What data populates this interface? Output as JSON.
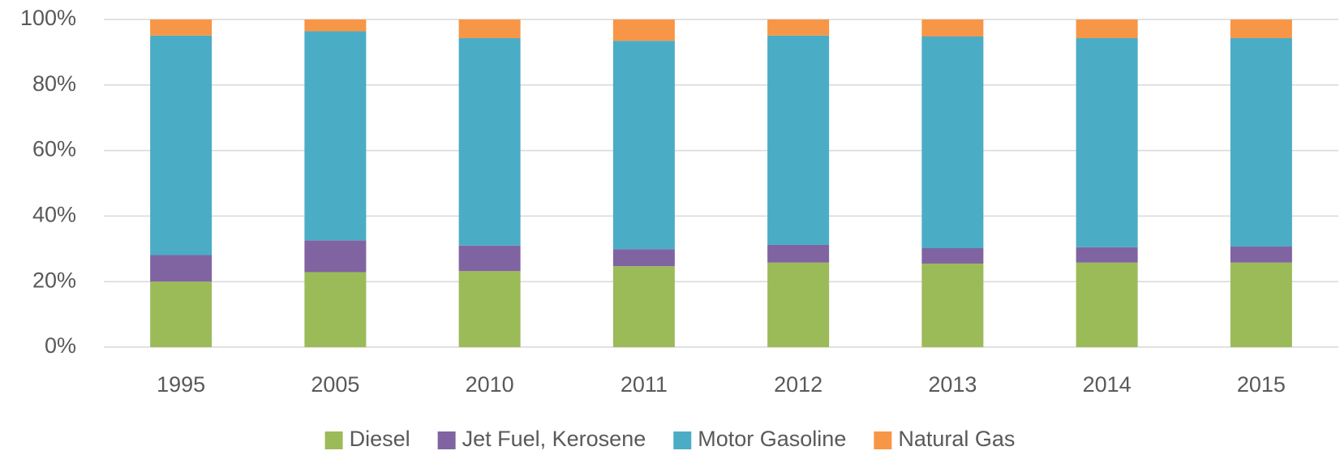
{
  "chart_data": {
    "type": "stacked_bar",
    "categories": [
      "1995",
      "2005",
      "2010",
      "2011",
      "2012",
      "2013",
      "2014",
      "2015"
    ],
    "series": [
      {
        "name": "Diesel",
        "color": "#9bbb59",
        "values": [
          20.0,
          22.9,
          23.2,
          24.7,
          25.8,
          25.5,
          25.8,
          25.8
        ]
      },
      {
        "name": "Jet Fuel, Kerosene",
        "color": "#8064a2",
        "values": [
          8.1,
          9.7,
          7.8,
          5.2,
          5.4,
          4.7,
          4.7,
          4.9
        ]
      },
      {
        "name": "Motor Gasoline",
        "color": "#4bacc6",
        "values": [
          67.0,
          63.8,
          63.3,
          63.6,
          63.9,
          64.6,
          63.8,
          63.6
        ]
      },
      {
        "name": "Natural Gas",
        "color": "#f79646",
        "values": [
          4.9,
          3.6,
          5.7,
          6.5,
          4.9,
          5.2,
          5.7,
          5.7
        ]
      }
    ],
    "ylim": [
      0,
      100
    ],
    "yticks": [
      {
        "value": 0,
        "label": "0%"
      },
      {
        "value": 20,
        "label": "20%"
      },
      {
        "value": 40,
        "label": "40%"
      },
      {
        "value": 60,
        "label": "60%"
      },
      {
        "value": 80,
        "label": "80%"
      },
      {
        "value": 100,
        "label": "100%"
      }
    ],
    "grid": true,
    "legend": "bottom"
  }
}
